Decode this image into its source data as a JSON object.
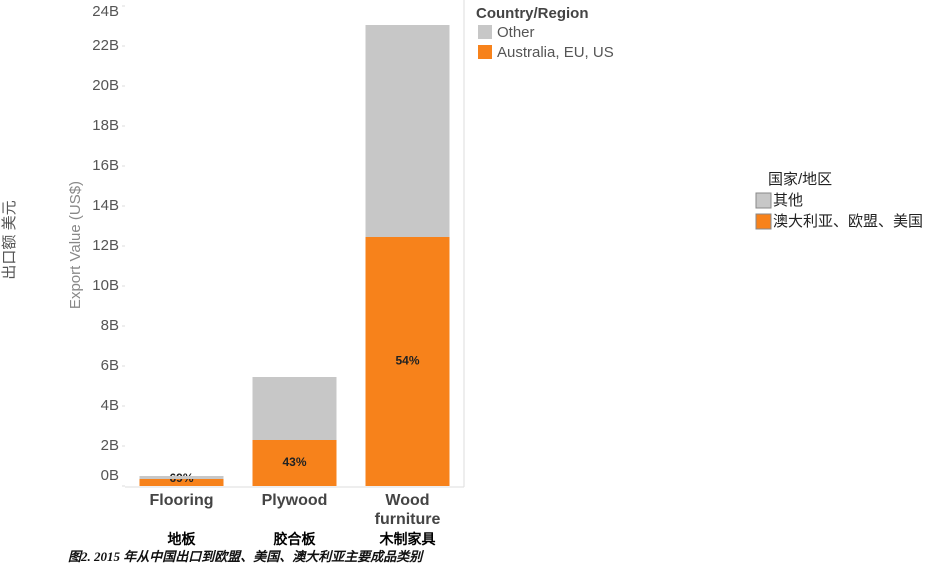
{
  "chart_data": {
    "type": "stacked_bar",
    "y_label": "Export Value (US$)",
    "y_label_alt": "出口额 美元",
    "categories": [
      "Flooring",
      "Plywood",
      "Wood furniture"
    ],
    "categories_alt": [
      "地板",
      "胶合板",
      "木制家具"
    ],
    "series": [
      {
        "name": "Australia, EU, US",
        "name_alt": "澳大利亚、欧盟、美国",
        "color": "#f7821b",
        "values": [
          0.35,
          2.3,
          12.45
        ],
        "share_labels": [
          "69%",
          "43%",
          "54%"
        ]
      },
      {
        "name": "Other",
        "name_alt": "其他",
        "color": "#c7c7c7",
        "values": [
          0.15,
          3.15,
          10.6
        ]
      }
    ],
    "legend_title": "Country/Region",
    "legend_title_alt": "国家/地区",
    "caption": "图2. 2015 年从中国出口到欧盟、美国、澳大利亚主要成品类别",
    "ylim": [
      0,
      24
    ],
    "yticks": [
      {
        "value": 0,
        "label": "0B"
      },
      {
        "value": 2,
        "label": "2B"
      },
      {
        "value": 4,
        "label": "4B"
      },
      {
        "value": 6,
        "label": "6B"
      },
      {
        "value": 8,
        "label": "8B"
      },
      {
        "value": 10,
        "label": "10B"
      },
      {
        "value": 12,
        "label": "12B"
      },
      {
        "value": 14,
        "label": "14B"
      },
      {
        "value": 16,
        "label": "16B"
      },
      {
        "value": 18,
        "label": "18B"
      },
      {
        "value": 20,
        "label": "20B"
      },
      {
        "value": 22,
        "label": "22B"
      },
      {
        "value": 24,
        "label": "24B"
      }
    ]
  }
}
